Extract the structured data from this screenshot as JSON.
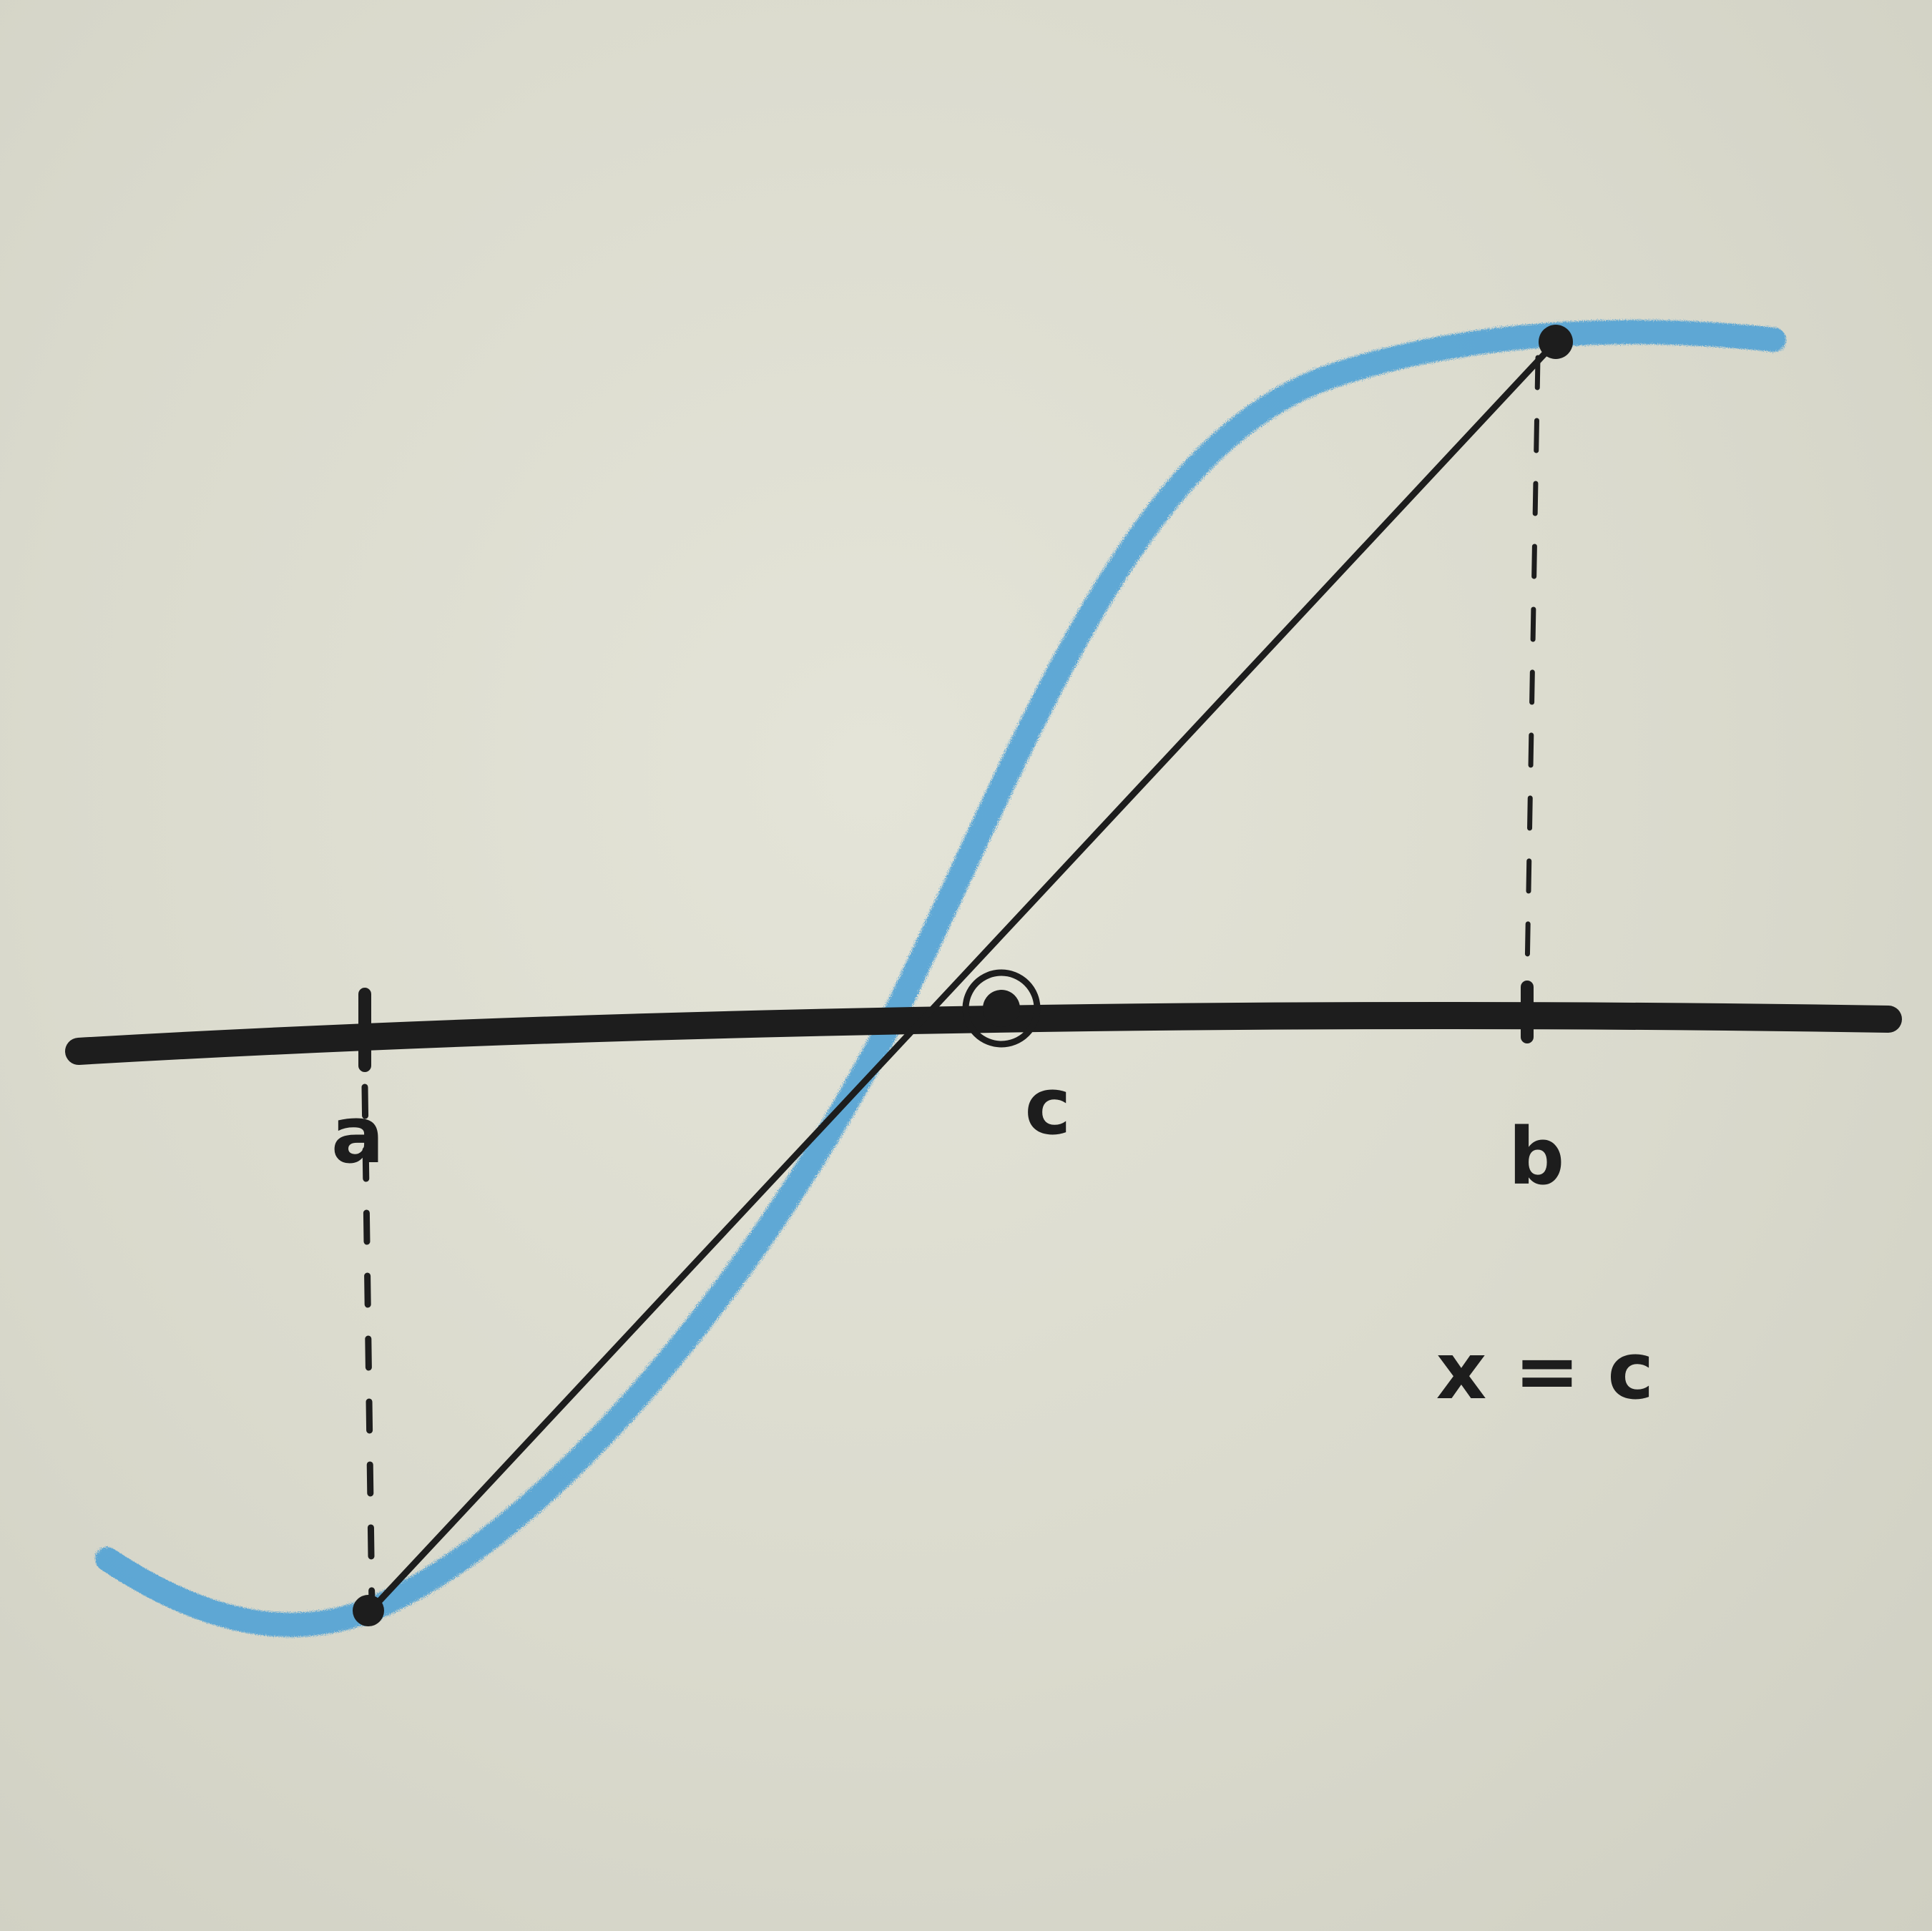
{
  "labels": {
    "a": "a",
    "b": "b",
    "c": "c",
    "equation": "x = c"
  },
  "colors": {
    "paper": "#dcdccf",
    "ink": "#1d1d1d",
    "curve": "#4a9fd6"
  }
}
